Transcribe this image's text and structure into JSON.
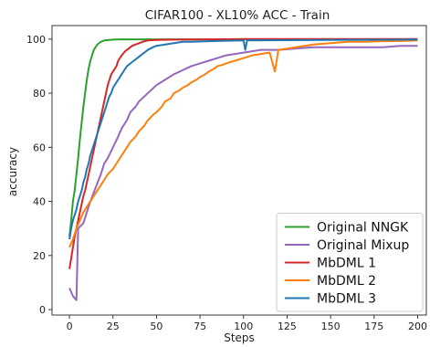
{
  "chart_data": {
    "type": "line",
    "title": "CIFAR100 - XL10% ACC - Train",
    "xlabel": "Steps",
    "ylabel": "accuracy",
    "xlim": [
      -10,
      205
    ],
    "ylim": [
      -2,
      105
    ],
    "x_ticks": [
      0,
      25,
      50,
      75,
      100,
      125,
      150,
      175,
      200
    ],
    "y_ticks": [
      0,
      20,
      40,
      60,
      80,
      100
    ],
    "grid": false,
    "legend_position": "bottom-right",
    "series": [
      {
        "name": "Original NNGK",
        "color": "#2ca02c",
        "points": [
          [
            0,
            27
          ],
          [
            1,
            33
          ],
          [
            2,
            40
          ],
          [
            3,
            44
          ],
          [
            4,
            50
          ],
          [
            5,
            56
          ],
          [
            6,
            63
          ],
          [
            7,
            69
          ],
          [
            8,
            75
          ],
          [
            9,
            80
          ],
          [
            10,
            85
          ],
          [
            11,
            89
          ],
          [
            12,
            92
          ],
          [
            13,
            94
          ],
          [
            14,
            96
          ],
          [
            15,
            97
          ],
          [
            16,
            98
          ],
          [
            17,
            98.5
          ],
          [
            18,
            99
          ],
          [
            20,
            99.5
          ],
          [
            25,
            99.8
          ],
          [
            30,
            99.9
          ],
          [
            200,
            99.9
          ]
        ]
      },
      {
        "name": "Original Mixup",
        "color": "#9467bd",
        "points": [
          [
            0,
            8
          ],
          [
            2,
            5
          ],
          [
            4,
            3.5
          ],
          [
            5,
            30
          ],
          [
            8,
            32
          ],
          [
            12,
            40
          ],
          [
            15,
            45
          ],
          [
            18,
            50
          ],
          [
            20,
            54
          ],
          [
            22,
            56
          ],
          [
            25,
            60
          ],
          [
            28,
            64
          ],
          [
            30,
            67
          ],
          [
            33,
            70
          ],
          [
            35,
            73
          ],
          [
            38,
            75
          ],
          [
            40,
            77
          ],
          [
            45,
            80
          ],
          [
            50,
            83
          ],
          [
            55,
            85
          ],
          [
            60,
            87
          ],
          [
            65,
            88.5
          ],
          [
            70,
            90
          ],
          [
            75,
            91
          ],
          [
            80,
            92
          ],
          [
            85,
            93
          ],
          [
            90,
            94
          ],
          [
            95,
            94.5
          ],
          [
            100,
            95
          ],
          [
            110,
            96
          ],
          [
            120,
            96
          ],
          [
            130,
            96.5
          ],
          [
            140,
            97
          ],
          [
            150,
            97
          ],
          [
            160,
            97
          ],
          [
            170,
            97
          ],
          [
            180,
            97
          ],
          [
            190,
            97.5
          ],
          [
            200,
            97.5
          ]
        ]
      },
      {
        "name": "MbDML 1",
        "color": "#d62728",
        "points": [
          [
            0,
            15
          ],
          [
            1,
            19
          ],
          [
            2,
            23
          ],
          [
            3,
            27
          ],
          [
            4,
            30
          ],
          [
            5,
            33
          ],
          [
            6,
            36
          ],
          [
            7,
            39
          ],
          [
            8,
            42
          ],
          [
            9,
            44
          ],
          [
            10,
            47
          ],
          [
            11,
            50
          ],
          [
            12,
            53
          ],
          [
            13,
            56
          ],
          [
            14,
            59
          ],
          [
            15,
            62
          ],
          [
            16,
            65
          ],
          [
            17,
            68
          ],
          [
            18,
            71
          ],
          [
            19,
            74
          ],
          [
            20,
            77
          ],
          [
            21,
            80
          ],
          [
            22,
            83
          ],
          [
            23,
            85
          ],
          [
            24,
            87
          ],
          [
            25,
            88
          ],
          [
            27,
            90
          ],
          [
            28,
            92
          ],
          [
            30,
            94
          ],
          [
            32,
            95.5
          ],
          [
            34,
            96.5
          ],
          [
            36,
            97.5
          ],
          [
            38,
            98
          ],
          [
            40,
            98.5
          ],
          [
            42,
            99
          ],
          [
            45,
            99.5
          ],
          [
            50,
            99.7
          ],
          [
            60,
            99.8
          ],
          [
            80,
            99.9
          ],
          [
            100,
            100
          ],
          [
            200,
            100
          ]
        ]
      },
      {
        "name": "MbDML 2",
        "color": "#ff7f0e",
        "points": [
          [
            0,
            23
          ],
          [
            2,
            26
          ],
          [
            4,
            30
          ],
          [
            6,
            33
          ],
          [
            8,
            36
          ],
          [
            10,
            38
          ],
          [
            12,
            40
          ],
          [
            14,
            42
          ],
          [
            16,
            44
          ],
          [
            18,
            46
          ],
          [
            20,
            48
          ],
          [
            22,
            50
          ],
          [
            25,
            52
          ],
          [
            28,
            55
          ],
          [
            30,
            57
          ],
          [
            33,
            60
          ],
          [
            35,
            62
          ],
          [
            38,
            64
          ],
          [
            40,
            66
          ],
          [
            43,
            68
          ],
          [
            45,
            70
          ],
          [
            48,
            72
          ],
          [
            50,
            73
          ],
          [
            53,
            75
          ],
          [
            55,
            77
          ],
          [
            58,
            78
          ],
          [
            60,
            80
          ],
          [
            63,
            81
          ],
          [
            65,
            82
          ],
          [
            68,
            83
          ],
          [
            70,
            84
          ],
          [
            73,
            85
          ],
          [
            75,
            86
          ],
          [
            78,
            87
          ],
          [
            80,
            88
          ],
          [
            83,
            89
          ],
          [
            85,
            90
          ],
          [
            88,
            90.5
          ],
          [
            90,
            91
          ],
          [
            95,
            92
          ],
          [
            100,
            93
          ],
          [
            105,
            94
          ],
          [
            110,
            94.5
          ],
          [
            115,
            95
          ],
          [
            118,
            88
          ],
          [
            120,
            96
          ],
          [
            125,
            96.5
          ],
          [
            130,
            97
          ],
          [
            135,
            97.5
          ],
          [
            140,
            98
          ],
          [
            150,
            98.5
          ],
          [
            160,
            99
          ],
          [
            170,
            99
          ],
          [
            180,
            99.2
          ],
          [
            190,
            99.3
          ],
          [
            200,
            99.5
          ]
        ]
      },
      {
        "name": "MbDML 3",
        "color": "#1f77b4",
        "points": [
          [
            0,
            26
          ],
          [
            1,
            30
          ],
          [
            2,
            33
          ],
          [
            3,
            35
          ],
          [
            4,
            37
          ],
          [
            5,
            40
          ],
          [
            6,
            42
          ],
          [
            7,
            44
          ],
          [
            8,
            47
          ],
          [
            9,
            49
          ],
          [
            10,
            52
          ],
          [
            11,
            54
          ],
          [
            12,
            57
          ],
          [
            13,
            59
          ],
          [
            14,
            61
          ],
          [
            15,
            63
          ],
          [
            16,
            65
          ],
          [
            17,
            67
          ],
          [
            18,
            69
          ],
          [
            19,
            71
          ],
          [
            20,
            73
          ],
          [
            21,
            75
          ],
          [
            22,
            77
          ],
          [
            23,
            79
          ],
          [
            24,
            80
          ],
          [
            25,
            82
          ],
          [
            27,
            84
          ],
          [
            29,
            86
          ],
          [
            31,
            88
          ],
          [
            33,
            90
          ],
          [
            35,
            91
          ],
          [
            37,
            92
          ],
          [
            39,
            93
          ],
          [
            41,
            94
          ],
          [
            43,
            95
          ],
          [
            45,
            96
          ],
          [
            48,
            97
          ],
          [
            50,
            97.5
          ],
          [
            55,
            98
          ],
          [
            60,
            98.5
          ],
          [
            65,
            99
          ],
          [
            70,
            99
          ],
          [
            80,
            99.2
          ],
          [
            90,
            99.4
          ],
          [
            100,
            99.5
          ],
          [
            101,
            96
          ],
          [
            102,
            99.5
          ],
          [
            150,
            99.7
          ],
          [
            200,
            99.8
          ]
        ]
      }
    ]
  }
}
